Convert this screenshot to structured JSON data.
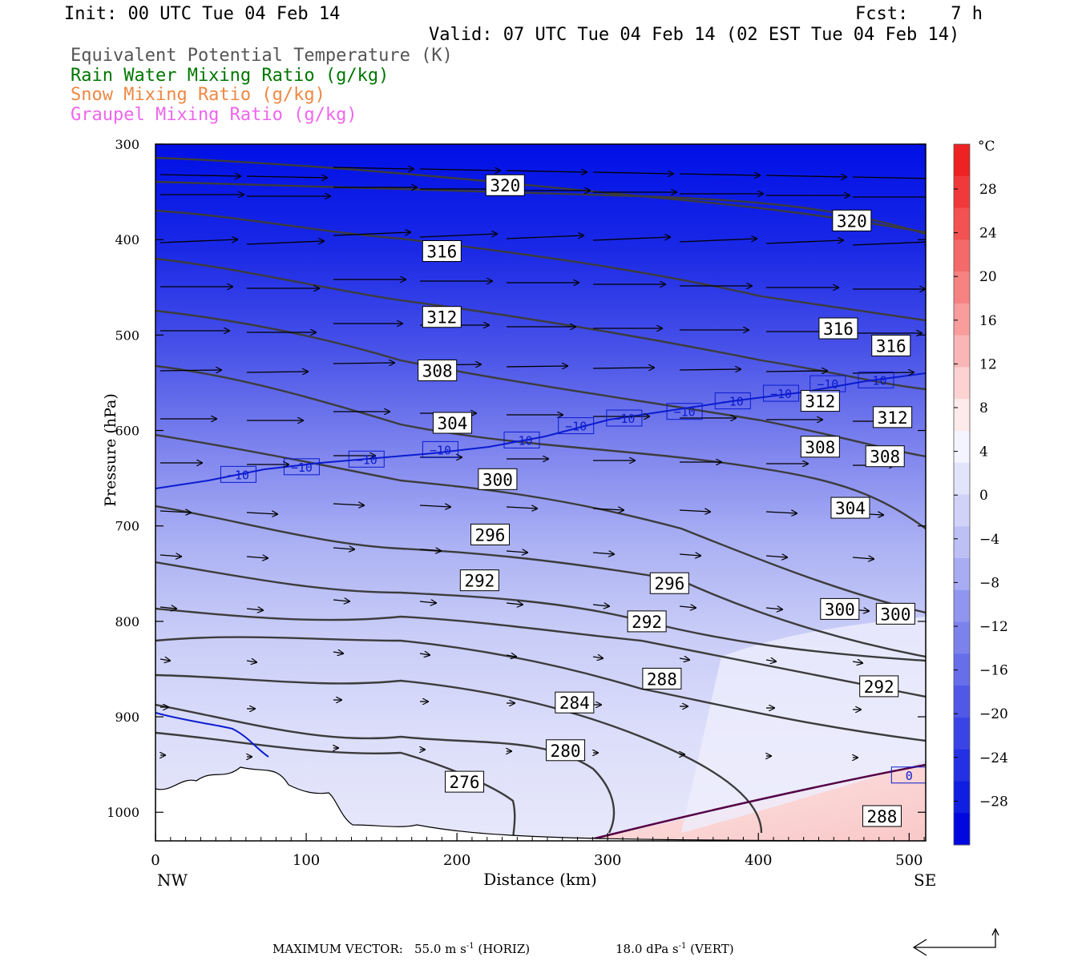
{
  "header": {
    "init": "Init: 00 UTC Tue 04 Feb 14",
    "fcst": "Fcst:    7 h",
    "valid": "Valid: 07 UTC Tue 04 Feb 14 (02 EST Tue 04 Feb 14)"
  },
  "legend": [
    {
      "label": "Equivalent Potential Temperature (K)",
      "color": "#555555"
    },
    {
      "label": "Rain Water Mixing Ratio (g/kg)",
      "color": "#007700"
    },
    {
      "label": "Snow Mixing Ratio (g/kg)",
      "color": "#ee8844"
    },
    {
      "label": "Graupel Mixing Ratio (g/kg)",
      "color": "#ee66ee"
    }
  ],
  "footer": {
    "vector_label": "MAXIMUM VECTOR:",
    "horiz_value": "55.0 m s",
    "horiz_exp": "-1",
    "horiz_suffix": " (HORIZ)",
    "vert_value": "18.0 dPa s",
    "vert_exp": "-1",
    "vert_suffix": " (VERT)"
  },
  "chart_data": {
    "type": "cross-section",
    "xlabel": "Distance (km)",
    "ylabel": "Pressure (hPa)",
    "xlim": [
      0,
      511
    ],
    "ylim": [
      1030,
      300
    ],
    "x_ticks": [
      0,
      100,
      200,
      300,
      400,
      500
    ],
    "y_ticks": [
      300,
      400,
      500,
      600,
      700,
      800,
      900,
      1000
    ],
    "left_end_label": "NW",
    "right_end_label": "SE",
    "colorbar": {
      "unit": "°C",
      "ticks": [
        "28",
        "24",
        "20",
        "16",
        "12",
        "8",
        "4",
        "0",
        "−4",
        "−8",
        "−12",
        "−16",
        "−20",
        "−24",
        "−28"
      ],
      "colors": [
        "#ee2222",
        "#f03a3a",
        "#f25252",
        "#f46a6a",
        "#f68282",
        "#f89c9c",
        "#fab6b6",
        "#fcd2d2",
        "#fdeaea",
        "#f4f4ff",
        "#e2e4fb",
        "#d0d2f8",
        "#bcc0f5",
        "#a8acf2",
        "#9096ef",
        "#7c82ec",
        "#666eea",
        "#5058e8",
        "#3a44e6",
        "#2430e4",
        "#101ee2",
        "#0008e0"
      ]
    },
    "theta_e_labels": [
      {
        "x": 232,
        "p": 343,
        "v": "320"
      },
      {
        "x": 462,
        "p": 380,
        "v": "320"
      },
      {
        "x": 190,
        "p": 412,
        "v": "316"
      },
      {
        "x": 453,
        "p": 493,
        "v": "316"
      },
      {
        "x": 488,
        "p": 511,
        "v": "316"
      },
      {
        "x": 190,
        "p": 481,
        "v": "312"
      },
      {
        "x": 441,
        "p": 569,
        "v": "312"
      },
      {
        "x": 489,
        "p": 586,
        "v": "312"
      },
      {
        "x": 187,
        "p": 537,
        "v": "308"
      },
      {
        "x": 441,
        "p": 617,
        "v": "308"
      },
      {
        "x": 484,
        "p": 627,
        "v": "308"
      },
      {
        "x": 197,
        "p": 592,
        "v": "304"
      },
      {
        "x": 461,
        "p": 681,
        "v": "304"
      },
      {
        "x": 227,
        "p": 651,
        "v": "300"
      },
      {
        "x": 454,
        "p": 787,
        "v": "300"
      },
      {
        "x": 491,
        "p": 792,
        "v": "300"
      },
      {
        "x": 222,
        "p": 709,
        "v": "296"
      },
      {
        "x": 341,
        "p": 760,
        "v": "296"
      },
      {
        "x": 215,
        "p": 757,
        "v": "292"
      },
      {
        "x": 326,
        "p": 800,
        "v": "292"
      },
      {
        "x": 480,
        "p": 868,
        "v": "292"
      },
      {
        "x": 336,
        "p": 860,
        "v": "288"
      },
      {
        "x": 482,
        "p": 1004,
        "v": "288"
      },
      {
        "x": 278,
        "p": 885,
        "v": "284"
      },
      {
        "x": 272,
        "p": 935,
        "v": "280"
      },
      {
        "x": 205,
        "p": 968,
        "v": "276"
      }
    ],
    "temp_labels": [
      {
        "x": 55,
        "p": 646,
        "v": "−10"
      },
      {
        "x": 97,
        "p": 638,
        "v": "−10"
      },
      {
        "x": 140,
        "p": 630,
        "v": "−10"
      },
      {
        "x": 189,
        "p": 620,
        "v": "−10"
      },
      {
        "x": 243,
        "p": 610,
        "v": "−10"
      },
      {
        "x": 279,
        "p": 595,
        "v": "−10"
      },
      {
        "x": 311,
        "p": 587,
        "v": "−10"
      },
      {
        "x": 351,
        "p": 580,
        "v": "−10"
      },
      {
        "x": 383,
        "p": 569,
        "v": "−10"
      },
      {
        "x": 415,
        "p": 561,
        "v": "−10"
      },
      {
        "x": 446,
        "p": 551,
        "v": "−10"
      },
      {
        "x": 478,
        "p": 547,
        "v": "−10"
      },
      {
        "x": 500,
        "p": 961,
        "v": "0"
      }
    ]
  }
}
